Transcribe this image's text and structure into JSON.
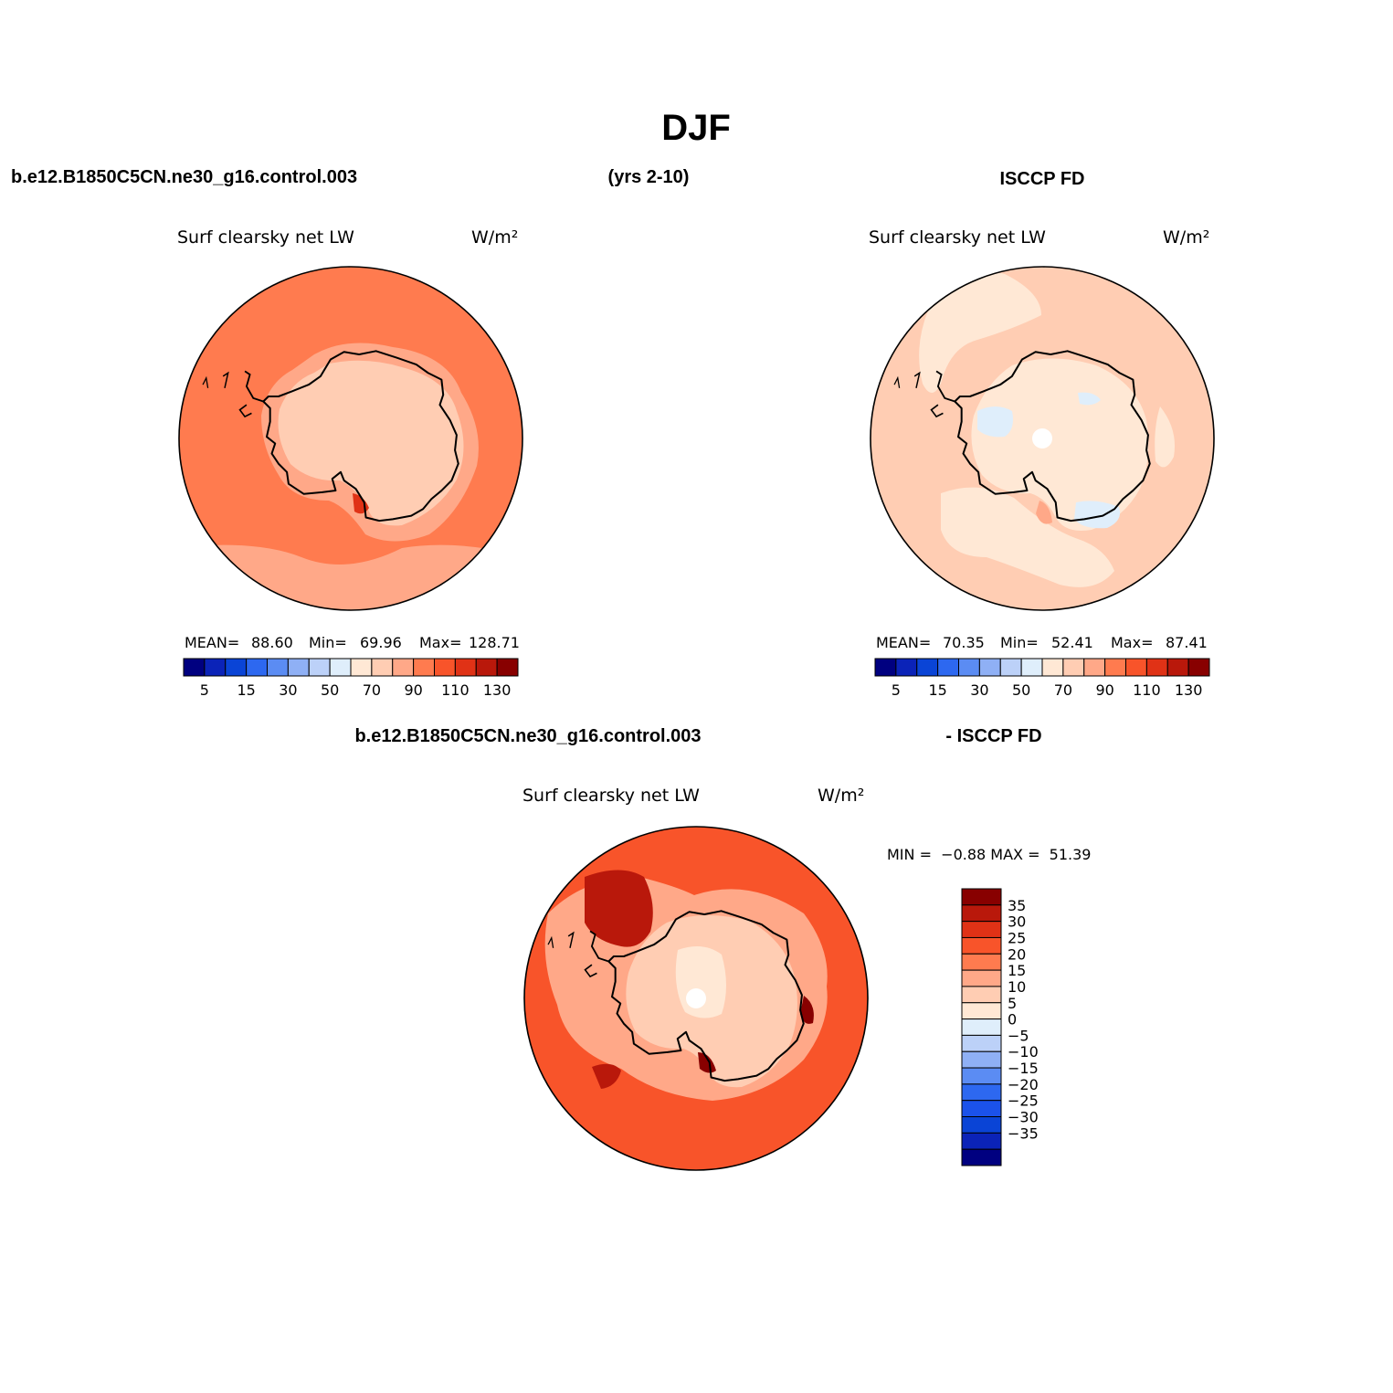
{
  "header": {
    "title": "DJF",
    "case_name": "b.e12.B1850C5CN.ne30_g16.control.003",
    "years": "(yrs 2-10)",
    "obs_name": "ISCCP FD",
    "diff_case": "b.e12.B1850C5CN.ne30_g16.control.003",
    "diff_obs": "- ISCCP FD"
  },
  "colors": {
    "full_scale": [
      "#000080",
      "#0b23b8",
      "#0a44d6",
      "#2d68f0",
      "#5b8cf3",
      "#8fb0f5",
      "#bcd1f8",
      "#dfeefb",
      "#ffe8d5",
      "#ffcdb3",
      "#ffa888",
      "#ff7b4f",
      "#f8542a",
      "#e03216",
      "#b9180b",
      "#880000"
    ],
    "diff_scale": [
      "#000080",
      "#0b23b8",
      "#0a44d6",
      "#1b52ea",
      "#2d68f0",
      "#5b8cf3",
      "#8fb0f5",
      "#bcd1f8",
      "#dfeefb",
      "#ffe8d5",
      "#ffcdb3",
      "#ffa888",
      "#ff7b4f",
      "#f8542a",
      "#e03216",
      "#b9180b",
      "#880000"
    ],
    "land_outline": "#000000"
  },
  "panels": [
    {
      "id": "model",
      "title": "Surf clearsky net LW",
      "units": "W/m²",
      "stats": {
        "mean_label": "MEAN=",
        "mean": "88.60",
        "min_label": "Min=",
        "min": "69.96",
        "max_label": "Max=",
        "max": "128.71"
      },
      "levels": [
        0,
        5,
        10,
        15,
        20,
        30,
        40,
        50,
        60,
        70,
        80,
        90,
        100,
        110,
        120,
        130,
        140
      ],
      "tick_values": [
        5,
        15,
        30,
        50,
        70,
        90,
        110,
        130
      ],
      "colorbar": {
        "labels": [
          "5",
          "15",
          "30",
          "50",
          "70",
          "90",
          "110",
          "130"
        ]
      },
      "ocean_color_index": 11,
      "ice_color_index": 9,
      "pole_hole": false
    },
    {
      "id": "obs",
      "title": "Surf clearsky net LW",
      "units": "W/m²",
      "stats": {
        "mean_label": "MEAN=",
        "mean": "70.35",
        "min_label": "Min=",
        "min": "52.41",
        "max_label": "Max=",
        "max": "87.41"
      },
      "levels": [
        0,
        5,
        10,
        15,
        20,
        30,
        40,
        50,
        60,
        70,
        80,
        90,
        100,
        110,
        120,
        130,
        140
      ],
      "tick_values": [
        5,
        15,
        30,
        50,
        70,
        90,
        110,
        130
      ],
      "colorbar": {
        "labels": [
          "5",
          "15",
          "30",
          "50",
          "70",
          "90",
          "110",
          "130"
        ]
      },
      "ocean_color_index": 9,
      "ice_color_index": 8,
      "pole_hole": true
    },
    {
      "id": "diff",
      "title": "Surf clearsky net LW",
      "units": "W/m²",
      "stats": {
        "text": "MIN =  −0.88 MAX =  51.39"
      },
      "levels": [
        -35,
        -30,
        -25,
        -20,
        -15,
        -10,
        -5,
        0,
        5,
        10,
        15,
        20,
        25,
        30,
        35
      ],
      "colorbar": {
        "labels": [
          "35",
          "30",
          "25",
          "20",
          "15",
          "10",
          "5",
          "0",
          "−5",
          "−10",
          "−15",
          "−20",
          "−25",
          "−30",
          "−35"
        ]
      },
      "ocean_color_index": 13,
      "ice_color_index": 10,
      "pole_hole": true
    }
  ]
}
